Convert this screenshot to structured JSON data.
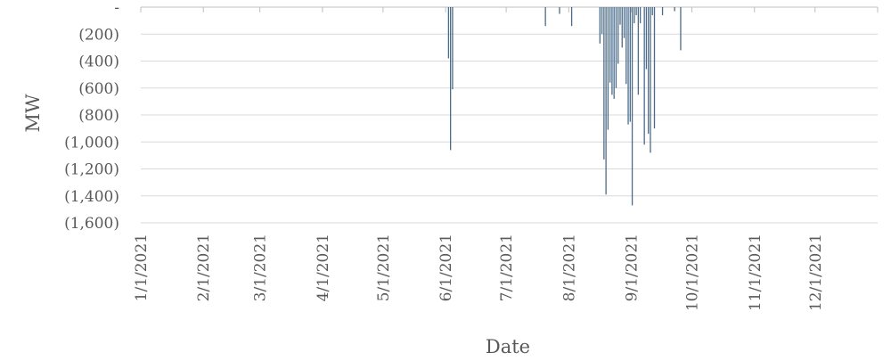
{
  "chart_data": {
    "type": "bar",
    "xlabel": "Date",
    "ylabel": "MW",
    "ylim": [
      -1600,
      0
    ],
    "y_ticks": [
      0,
      -200,
      -400,
      -600,
      -800,
      -1000,
      -1200,
      -1400,
      -1600
    ],
    "y_tick_labels": [
      "-",
      "(200)",
      "(400)",
      "(600)",
      "(800)",
      "(1,000)",
      "(1,200)",
      "(1,400)",
      "(1,600)"
    ],
    "x_range": [
      "2021-01-01",
      "2021-12-31"
    ],
    "x_ticks": [
      "2021-01-01",
      "2021-02-01",
      "2021-03-01",
      "2021-04-01",
      "2021-05-01",
      "2021-06-01",
      "2021-07-01",
      "2021-08-01",
      "2021-09-01",
      "2021-10-01",
      "2021-11-01",
      "2021-12-01"
    ],
    "x_tick_labels": [
      "1/1/2021",
      "2/1/2021",
      "3/1/2021",
      "4/1/2021",
      "5/1/2021",
      "6/1/2021",
      "7/1/2021",
      "8/1/2021",
      "9/1/2021",
      "10/1/2021",
      "11/1/2021",
      "12/1/2021"
    ],
    "grid": true,
    "legend": "none",
    "color": "#4a6b8a",
    "points": [
      {
        "x": "2021-06-02",
        "y": -380
      },
      {
        "x": "2021-06-03",
        "y": -1060
      },
      {
        "x": "2021-06-04",
        "y": -610
      },
      {
        "x": "2021-07-20",
        "y": -140
      },
      {
        "x": "2021-07-27",
        "y": -50
      },
      {
        "x": "2021-08-02",
        "y": -140
      },
      {
        "x": "2021-08-16",
        "y": -270
      },
      {
        "x": "2021-08-17",
        "y": -200
      },
      {
        "x": "2021-08-18",
        "y": -1130
      },
      {
        "x": "2021-08-19",
        "y": -1390
      },
      {
        "x": "2021-08-20",
        "y": -910
      },
      {
        "x": "2021-08-21",
        "y": -560
      },
      {
        "x": "2021-08-22",
        "y": -650
      },
      {
        "x": "2021-08-23",
        "y": -680
      },
      {
        "x": "2021-08-24",
        "y": -600
      },
      {
        "x": "2021-08-25",
        "y": -420
      },
      {
        "x": "2021-08-26",
        "y": -130
      },
      {
        "x": "2021-08-27",
        "y": -300
      },
      {
        "x": "2021-08-28",
        "y": -230
      },
      {
        "x": "2021-08-29",
        "y": -570
      },
      {
        "x": "2021-08-30",
        "y": -870
      },
      {
        "x": "2021-08-31",
        "y": -850
      },
      {
        "x": "2021-09-01",
        "y": -1470
      },
      {
        "x": "2021-09-02",
        "y": -120
      },
      {
        "x": "2021-09-03",
        "y": -60
      },
      {
        "x": "2021-09-04",
        "y": -650
      },
      {
        "x": "2021-09-05",
        "y": -120
      },
      {
        "x": "2021-09-07",
        "y": -1020
      },
      {
        "x": "2021-09-08",
        "y": -460
      },
      {
        "x": "2021-09-09",
        "y": -940
      },
      {
        "x": "2021-09-10",
        "y": -1080
      },
      {
        "x": "2021-09-11",
        "y": -60
      },
      {
        "x": "2021-09-12",
        "y": -900
      },
      {
        "x": "2021-09-16",
        "y": -60
      },
      {
        "x": "2021-09-22",
        "y": -30
      },
      {
        "x": "2021-09-25",
        "y": -320
      }
    ]
  }
}
